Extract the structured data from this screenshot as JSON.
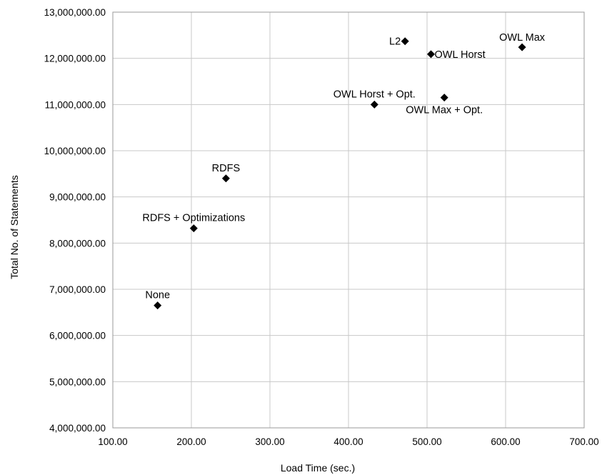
{
  "chart_data": {
    "type": "scatter",
    "title": "",
    "xlabel": "Load Time (sec.)",
    "ylabel": "Total No. of Statements",
    "xlim": [
      100,
      700
    ],
    "ylim": [
      4000000,
      13000000
    ],
    "x_ticks": [
      "100.00",
      "200.00",
      "300.00",
      "400.00",
      "500.00",
      "600.00",
      "700.00"
    ],
    "y_ticks": [
      "4,000,000.00",
      "5,000,000.00",
      "6,000,000.00",
      "7,000,000.00",
      "8,000,000.00",
      "9,000,000.00",
      "10,000,000.00",
      "11,000,000.00",
      "12,000,000.00",
      "13,000,000.00"
    ],
    "grid": true,
    "legend": "none",
    "marker": "diamond",
    "marker_color": "#000000",
    "points": [
      {
        "label": "None",
        "x": 157,
        "y": 6650000
      },
      {
        "label": "RDFS + Optimizations",
        "x": 203,
        "y": 8320000
      },
      {
        "label": "RDFS",
        "x": 244,
        "y": 9400000
      },
      {
        "label": "OWL Horst + Opt.",
        "x": 433,
        "y": 11000000
      },
      {
        "label": "L2",
        "x": 472,
        "y": 12370000
      },
      {
        "label": "OWL Horst",
        "x": 505,
        "y": 12090000
      },
      {
        "label": "OWL Max + Opt.",
        "x": 522,
        "y": 11150000
      },
      {
        "label": "OWL Max",
        "x": 621,
        "y": 12240000
      }
    ]
  }
}
